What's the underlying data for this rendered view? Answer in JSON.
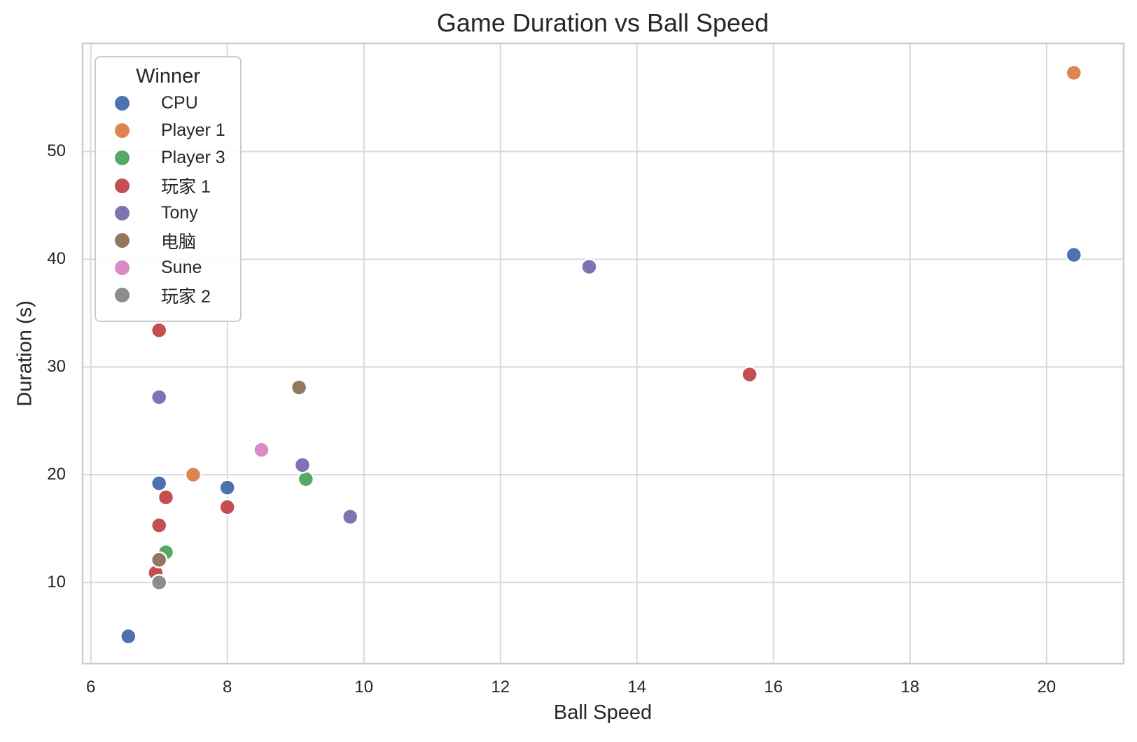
{
  "chart_data": {
    "type": "scatter",
    "title": "Game Duration vs Ball Speed",
    "xlabel": "Ball Speed",
    "ylabel": "Duration (s)",
    "xlim": [
      5.88,
      21.13
    ],
    "ylim": [
      2.47,
      60.03
    ],
    "x_ticks": [
      6,
      8,
      10,
      12,
      14,
      16,
      18,
      20
    ],
    "y_ticks": [
      10,
      20,
      30,
      40,
      50
    ],
    "grid": true,
    "legend_title": "Winner",
    "legend_position": "upper left",
    "series": [
      {
        "name": "CPU",
        "color": "#4C72B0",
        "points": [
          [
            6.55,
            5.0
          ],
          [
            7.0,
            19.2
          ],
          [
            8.0,
            18.8
          ],
          [
            20.4,
            40.4
          ]
        ]
      },
      {
        "name": "Player 1",
        "color": "#DD8452",
        "points": [
          [
            7.5,
            20.0
          ],
          [
            20.4,
            57.3
          ]
        ]
      },
      {
        "name": "Player 3",
        "color": "#55A868",
        "points": [
          [
            7.1,
            12.8
          ],
          [
            9.15,
            19.6
          ]
        ]
      },
      {
        "name": "玩家 1",
        "color": "#C44E52",
        "points": [
          [
            6.95,
            10.9
          ],
          [
            7.0,
            15.3
          ],
          [
            7.0,
            33.4
          ],
          [
            7.1,
            17.9
          ],
          [
            8.0,
            17.0
          ],
          [
            15.65,
            29.3
          ]
        ]
      },
      {
        "name": "Tony",
        "color": "#8172B3",
        "points": [
          [
            7.0,
            27.2
          ],
          [
            9.1,
            20.9
          ],
          [
            9.8,
            16.1
          ],
          [
            13.3,
            39.3
          ]
        ]
      },
      {
        "name": "电脑",
        "color": "#937860",
        "points": [
          [
            7.0,
            12.1
          ],
          [
            9.05,
            28.1
          ]
        ]
      },
      {
        "name": "Sune",
        "color": "#DA8BC3",
        "points": [
          [
            8.5,
            22.3
          ]
        ]
      },
      {
        "name": "玩家 2",
        "color": "#8C8C8C",
        "points": [
          [
            7.0,
            10.0
          ]
        ]
      }
    ],
    "colors": {
      "background": "#ffffff",
      "grid": "#d9d9d9",
      "spine": "#cccccc",
      "text": "#262626"
    }
  }
}
